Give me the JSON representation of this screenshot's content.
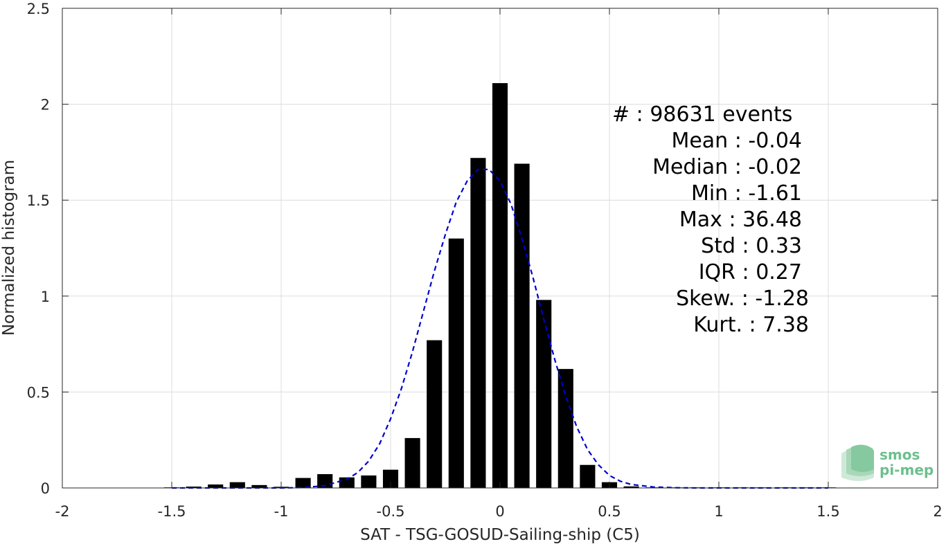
{
  "chart_data": {
    "type": "bar",
    "xlabel": "SAT - TSG-GOSUD-Sailing-ship (C5)",
    "ylabel": "Normalized histogram",
    "xlim": [
      -2,
      2
    ],
    "ylim": [
      0,
      2.5
    ],
    "x_ticks": [
      "-2",
      "-1.5",
      "-1",
      "-0.5",
      "0",
      "0.5",
      "1",
      "1.5",
      "2"
    ],
    "x_tick_values": [
      -2,
      -1.5,
      -1,
      -0.5,
      0,
      0.5,
      1,
      1.5,
      2
    ],
    "y_ticks": [
      "0",
      "0.5",
      "1",
      "1.5",
      "2",
      "2.5"
    ],
    "y_tick_values": [
      0,
      0.5,
      1,
      1.5,
      2,
      2.5
    ],
    "grid": true,
    "bar_color": "#000000",
    "curve_color": "#0000cc",
    "bars": {
      "x": [
        -1.5,
        -1.4,
        -1.3,
        -1.2,
        -1.1,
        -1.0,
        -0.9,
        -0.8,
        -0.7,
        -0.6,
        -0.5,
        -0.4,
        -0.3,
        -0.2,
        -0.1,
        0.0,
        0.1,
        0.2,
        0.3,
        0.4,
        0.5,
        0.6,
        0.7,
        0.8,
        0.9,
        1.0,
        1.1,
        1.2,
        1.3,
        1.4,
        1.5
      ],
      "values": [
        0.003,
        0.007,
        0.018,
        0.03,
        0.015,
        0.006,
        0.052,
        0.072,
        0.055,
        0.065,
        0.095,
        0.26,
        0.77,
        1.3,
        1.72,
        2.11,
        1.69,
        0.98,
        0.62,
        0.12,
        0.03,
        0.008,
        0.002,
        0.001,
        0.001,
        0.001,
        0.001,
        0.001,
        0.001,
        0.001,
        0.001
      ]
    },
    "fit_curve": {
      "style": "dashed",
      "x": [
        -1.5,
        -1.4,
        -1.3,
        -1.2,
        -1.1,
        -1.0,
        -0.9,
        -0.8,
        -0.7,
        -0.65,
        -0.6,
        -0.55,
        -0.5,
        -0.45,
        -0.4,
        -0.35,
        -0.3,
        -0.25,
        -0.2,
        -0.15,
        -0.1,
        -0.05,
        0.0,
        0.05,
        0.1,
        0.15,
        0.2,
        0.25,
        0.3,
        0.35,
        0.4,
        0.45,
        0.5,
        0.55,
        0.6,
        0.7,
        0.8,
        0.9,
        1.0,
        1.2,
        1.5
      ],
      "values": [
        0.0,
        0.0,
        0.0,
        0.0,
        0.0,
        0.0,
        0.002,
        0.012,
        0.045,
        0.08,
        0.14,
        0.23,
        0.36,
        0.52,
        0.71,
        0.92,
        1.13,
        1.32,
        1.49,
        1.6,
        1.66,
        1.66,
        1.6,
        1.48,
        1.3,
        1.1,
        0.88,
        0.67,
        0.48,
        0.32,
        0.2,
        0.12,
        0.065,
        0.035,
        0.018,
        0.005,
        0.001,
        0.0,
        0.0,
        0.0,
        0.0
      ]
    }
  },
  "stats": [
    {
      "label": "#",
      "sep": " : ",
      "value": "98631 events"
    },
    {
      "label": "Mean",
      "sep": " : ",
      "value": "-0.04"
    },
    {
      "label": "Median",
      "sep": " : ",
      "value": "-0.02"
    },
    {
      "label": "Min",
      "sep": " : ",
      "value": "-1.61"
    },
    {
      "label": "Max",
      "sep": " : ",
      "value": "36.48"
    },
    {
      "label": "Std",
      "sep": " : ",
      "value": "0.33"
    },
    {
      "label": "IQR",
      "sep": " : ",
      "value": "0.27"
    },
    {
      "label": "Skew.",
      "sep": " : ",
      "value": "-1.28"
    },
    {
      "label": "Kurt.",
      "sep": " : ",
      "value": "7.38"
    }
  ],
  "logo": {
    "line1": "smos",
    "line2": "pi-mep",
    "color": "#6dbf8e"
  }
}
